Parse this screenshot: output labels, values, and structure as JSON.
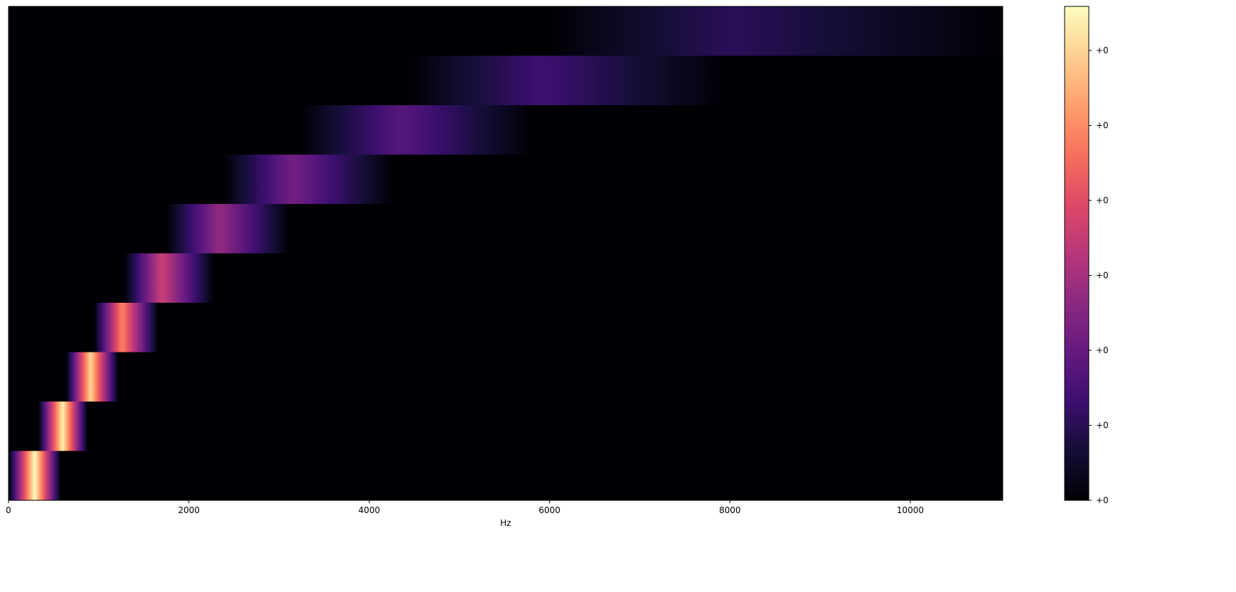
{
  "chart_data": {
    "type": "heatmap",
    "title": "",
    "xlabel": "Hz",
    "ylabel": "",
    "xlim": [
      0,
      11025
    ],
    "x_ticks": [
      0,
      2000,
      4000,
      6000,
      8000,
      10000
    ],
    "x_tick_labels": [
      "0",
      "2000",
      "4000",
      "6000",
      "8000",
      "10000"
    ],
    "grid": false,
    "colormap": "magma",
    "colorbar": {
      "position": "right",
      "tick_labels": [
        "+0",
        "+0",
        "+0",
        "+0",
        "+0",
        "+0",
        "+0"
      ]
    },
    "filters": [
      {
        "low": 0,
        "center": 290,
        "high": 580,
        "peak": 1.0
      },
      {
        "low": 330,
        "center": 600,
        "high": 880,
        "peak": 0.98
      },
      {
        "low": 640,
        "center": 910,
        "high": 1220,
        "peak": 0.92
      },
      {
        "low": 950,
        "center": 1260,
        "high": 1660,
        "peak": 0.75
      },
      {
        "low": 1280,
        "center": 1700,
        "high": 2280,
        "peak": 0.55
      },
      {
        "low": 1750,
        "center": 2340,
        "high": 3120,
        "peak": 0.42
      },
      {
        "low": 2380,
        "center": 3150,
        "high": 4270,
        "peak": 0.34
      },
      {
        "low": 3240,
        "center": 4350,
        "high": 5800,
        "peak": 0.27
      },
      {
        "low": 4400,
        "center": 5900,
        "high": 7950,
        "peak": 0.21
      },
      {
        "low": 5960,
        "center": 8000,
        "high": 11025,
        "peak": 0.16
      }
    ]
  }
}
